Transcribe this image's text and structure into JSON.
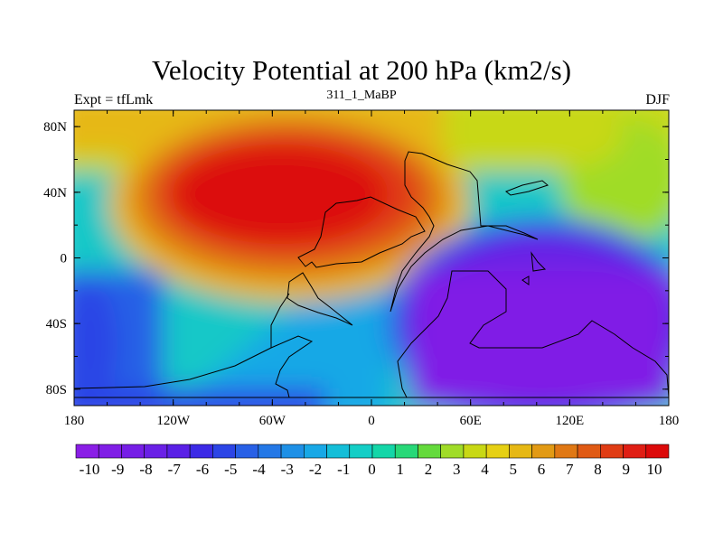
{
  "header": {
    "title": "Velocity Potential at 200 hPa (km2/s)",
    "left": "Expt = tfLmk",
    "center": "311_1_MaBP",
    "right": "DJF"
  },
  "map": {
    "lon_ticks": [
      "180",
      "120W",
      "60W",
      "0",
      "60E",
      "120E",
      "180"
    ],
    "lat_ticks": [
      "80N",
      "40N",
      "0",
      "40S",
      "80S"
    ]
  },
  "colorbar": {
    "labels": [
      "-10",
      "-9",
      "-8",
      "-7",
      "-6",
      "-5",
      "-4",
      "-3",
      "-2",
      "-1",
      "0",
      "1",
      "2",
      "3",
      "4",
      "5",
      "6",
      "7",
      "8",
      "9",
      "10"
    ],
    "colors": [
      "#8a1ee6",
      "#801ee6",
      "#761ee6",
      "#6a20e6",
      "#5a20e6",
      "#3c2ae6",
      "#2c45e6",
      "#2860e6",
      "#2478e6",
      "#1e90e6",
      "#18a8e6",
      "#14bed8",
      "#14cec6",
      "#14d6a8",
      "#28d878",
      "#64da3c",
      "#a0dc28",
      "#c8d814",
      "#e6d014",
      "#e6b814",
      "#e29a14",
      "#e07814",
      "#e05a14",
      "#e03c14",
      "#e01e14",
      "#dc0a0a"
    ]
  }
}
